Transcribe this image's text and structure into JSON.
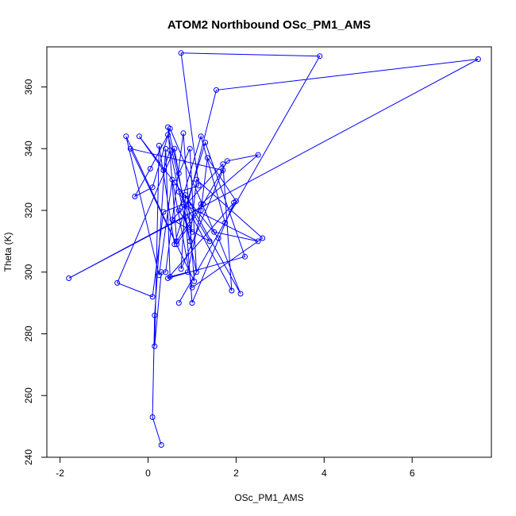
{
  "chart_data": {
    "type": "line",
    "title": "ATOM2 Northbound OSc_PM1_AMS",
    "xlabel": "OSc_PM1_AMS",
    "ylabel": "Theta (K)",
    "xlim": [
      -2.3,
      7.8
    ],
    "ylim": [
      240,
      373
    ],
    "xticks": [
      -2,
      0,
      2,
      4,
      6
    ],
    "yticks": [
      240,
      260,
      280,
      300,
      320,
      340,
      360
    ],
    "colors": {
      "series": "#0000ff"
    },
    "series": [
      {
        "name": "OSc_PM1_AMS",
        "x": [
          0.3,
          0.1,
          0.15,
          0.4,
          0.5,
          0.9,
          1.2,
          1.35,
          2.0,
          1.75,
          1.2,
          0.7,
          1.0,
          0.45,
          0.05,
          -0.3,
          0.1,
          0.5,
          1.5,
          2.5,
          0.8,
          0.35,
          0.1,
          -0.7,
          0.6,
          0.95,
          1.1,
          2.6,
          1.0,
          0.55,
          0.25,
          -0.5,
          0.65,
          1.25,
          1.8,
          2.5,
          1.2,
          0.65,
          0.45,
          0.7,
          0.95,
          1.1,
          0.5,
          0.35,
          -0.2,
          0.6,
          1.6,
          2.1,
          0.85,
          0.75,
          1.7,
          -0.4,
          1.05,
          0.8,
          0.4,
          0.3,
          0.15,
          0.25,
          0.6,
          1.3,
          2.2,
          0.45,
          1.95,
          1.0,
          0.85,
          -1.8,
          7.5,
          1.55,
          0.9,
          1.4,
          0.55,
          1.7,
          1.9,
          0.7,
          1.15,
          0.75,
          3.9,
          0.7
        ],
        "y": [
          244,
          253,
          286,
          340,
          298.5,
          300,
          320,
          337,
          323,
          316,
          344,
          320,
          313,
          344.5,
          333.5,
          324.5,
          327.5,
          346.5,
          313,
          310,
          322,
          319.5,
          292,
          296.5,
          340,
          310,
          330,
          311,
          295,
          330,
          299,
          344,
          309,
          322,
          336,
          338,
          322,
          310,
          347,
          332,
          340,
          300,
          339.5,
          333,
          344,
          329,
          311,
          293,
          325,
          301,
          333,
          340,
          297,
          345,
          300,
          300,
          276,
          341,
          309,
          342,
          305,
          298,
          322.5,
          290,
          318,
          298,
          369,
          359,
          322,
          310,
          317,
          335,
          294,
          326,
          328,
          371,
          370,
          290
        ]
      }
    ]
  }
}
